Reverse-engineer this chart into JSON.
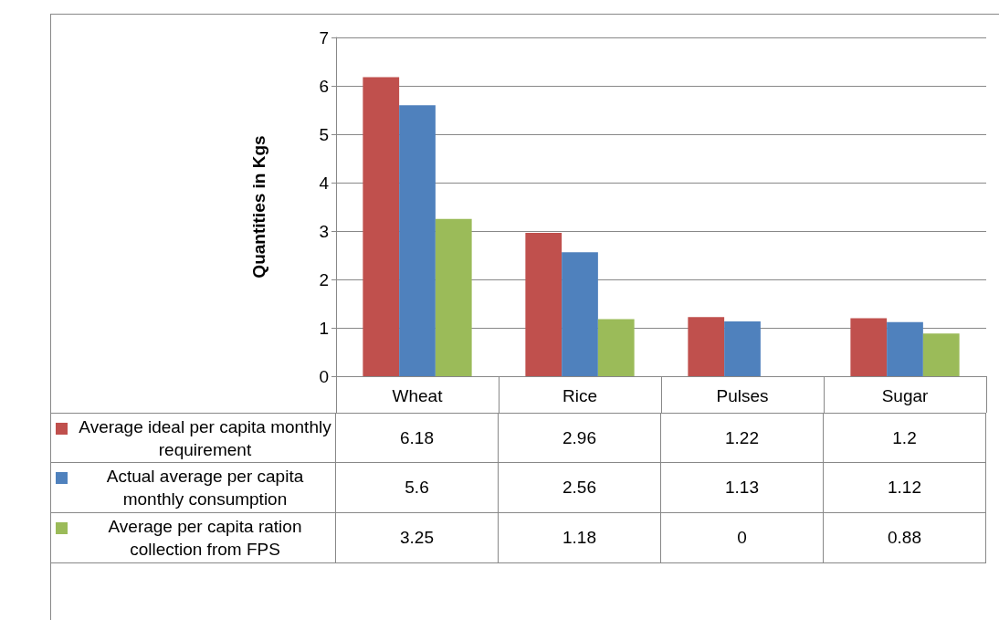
{
  "chart_data": {
    "type": "bar",
    "ylabel": "Quantities in Kgs",
    "categories": [
      "Wheat",
      "Rice",
      "Pulses",
      "Sugar"
    ],
    "series": [
      {
        "name": "Average ideal per capita monthly requirement",
        "color": "#c0504d",
        "values": [
          6.18,
          2.96,
          1.22,
          1.2
        ]
      },
      {
        "name": "Actual average per capita monthly consumption",
        "color": "#4f81bd",
        "values": [
          5.6,
          2.56,
          1.13,
          1.12
        ]
      },
      {
        "name": "Average per capita ration collection from FPS",
        "color": "#9bbb59",
        "values": [
          3.25,
          1.18,
          0,
          0.88
        ]
      }
    ],
    "ylim": [
      0,
      7
    ],
    "yticks": [
      0,
      1,
      2,
      3,
      4,
      5,
      6,
      7
    ],
    "grid": "y",
    "legend": "bottom",
    "data_labels": true
  }
}
